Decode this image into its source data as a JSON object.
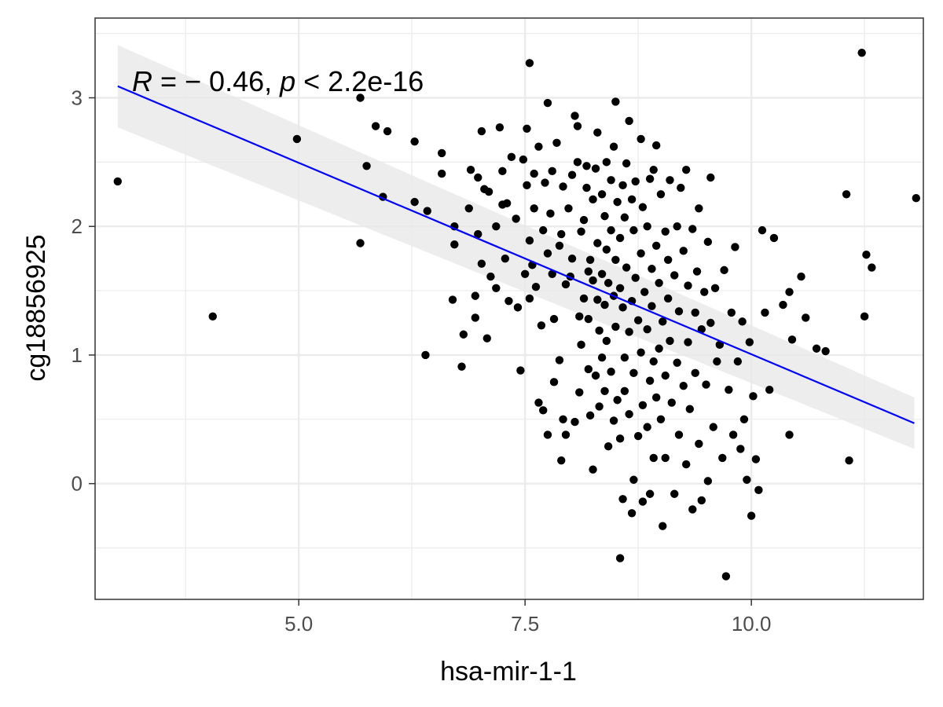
{
  "chart_data": {
    "type": "scatter",
    "xlabel": "hsa-mir-1-1",
    "ylabel": "cg18856925",
    "xlim": [
      2.75,
      11.9
    ],
    "ylim": [
      -0.9,
      3.62
    ],
    "x_ticks": [
      5.0,
      7.5,
      10.0
    ],
    "x_tick_labels": [
      "5.0",
      "7.5",
      "10.0"
    ],
    "y_ticks": [
      0,
      1,
      2,
      3
    ],
    "y_tick_labels": [
      "0",
      "1",
      "2",
      "3"
    ],
    "grid": true,
    "theme": "bw",
    "annotation": {
      "R_prefix": "R",
      "R_value": " = − 0.46,",
      "p_prefix": "p",
      "p_value": " < 2.2e-16"
    },
    "colors": {
      "points": "#000000",
      "fit_line": "#0000ff",
      "confidence_band": "#e8e8e8",
      "grid": "#ebebeb",
      "panel_border": "#333333"
    },
    "fit": {
      "method": "lm",
      "x": [
        3.0,
        11.8
      ],
      "y": [
        3.09,
        0.47
      ],
      "se_lower": [
        2.77,
        0.27
      ],
      "se_upper": [
        3.41,
        0.67
      ]
    },
    "points": [
      [
        3.0,
        2.35
      ],
      [
        4.05,
        1.3
      ],
      [
        4.98,
        2.68
      ],
      [
        5.68,
        3.0
      ],
      [
        5.68,
        1.87
      ],
      [
        5.75,
        2.47
      ],
      [
        5.85,
        2.78
      ],
      [
        5.93,
        2.23
      ],
      [
        5.98,
        2.74
      ],
      [
        6.28,
        2.66
      ],
      [
        6.28,
        2.19
      ],
      [
        6.42,
        2.12
      ],
      [
        6.4,
        1.0
      ],
      [
        6.58,
        2.57
      ],
      [
        6.58,
        2.41
      ],
      [
        6.7,
        1.43
      ],
      [
        6.72,
        1.86
      ],
      [
        6.72,
        2.0
      ],
      [
        6.8,
        0.91
      ],
      [
        6.82,
        1.16
      ],
      [
        6.88,
        2.14
      ],
      [
        6.9,
        2.44
      ],
      [
        6.95,
        1.46
      ],
      [
        6.95,
        1.29
      ],
      [
        6.98,
        1.94
      ],
      [
        6.98,
        2.38
      ],
      [
        7.02,
        2.74
      ],
      [
        7.02,
        1.71
      ],
      [
        7.05,
        2.29
      ],
      [
        7.08,
        1.13
      ],
      [
        7.1,
        2.27
      ],
      [
        7.12,
        1.61
      ],
      [
        7.18,
        2.0
      ],
      [
        7.18,
        1.52
      ],
      [
        7.22,
        2.77
      ],
      [
        7.25,
        2.43
      ],
      [
        7.25,
        2.17
      ],
      [
        7.28,
        1.75
      ],
      [
        7.3,
        2.18
      ],
      [
        7.32,
        1.42
      ],
      [
        7.35,
        2.54
      ],
      [
        7.4,
        2.06
      ],
      [
        7.42,
        1.37
      ],
      [
        7.45,
        0.88
      ],
      [
        7.48,
        2.52
      ],
      [
        7.5,
        1.63
      ],
      [
        7.52,
        2.32
      ],
      [
        7.52,
        2.76
      ],
      [
        7.55,
        3.27
      ],
      [
        7.55,
        1.44
      ],
      [
        7.55,
        1.89
      ],
      [
        7.58,
        1.7
      ],
      [
        7.6,
        2.41
      ],
      [
        7.6,
        2.14
      ],
      [
        7.62,
        1.53
      ],
      [
        7.65,
        2.62
      ],
      [
        7.65,
        0.63
      ],
      [
        7.68,
        1.23
      ],
      [
        7.7,
        1.97
      ],
      [
        7.7,
        0.57
      ],
      [
        7.72,
        2.34
      ],
      [
        7.75,
        2.96
      ],
      [
        7.75,
        1.79
      ],
      [
        7.75,
        0.38
      ],
      [
        7.78,
        2.1
      ],
      [
        7.8,
        2.43
      ],
      [
        7.8,
        1.63
      ],
      [
        7.82,
        0.79
      ],
      [
        7.82,
        1.28
      ],
      [
        7.85,
        2.65
      ],
      [
        7.88,
        1.85
      ],
      [
        7.88,
        0.96
      ],
      [
        7.9,
        0.18
      ],
      [
        7.9,
        1.94
      ],
      [
        7.92,
        0.5
      ],
      [
        7.92,
        2.31
      ],
      [
        7.95,
        1.55
      ],
      [
        7.95,
        0.38
      ],
      [
        7.98,
        2.14
      ],
      [
        8.0,
        1.61
      ],
      [
        8.02,
        2.4
      ],
      [
        8.02,
        1.75
      ],
      [
        8.05,
        2.86
      ],
      [
        8.05,
        0.48
      ],
      [
        8.08,
        2.78
      ],
      [
        8.08,
        2.5
      ],
      [
        8.1,
        0.71
      ],
      [
        8.1,
        1.3
      ],
      [
        8.12,
        1.96
      ],
      [
        8.12,
        1.08
      ],
      [
        8.15,
        2.05
      ],
      [
        8.15,
        1.44
      ],
      [
        8.18,
        2.47
      ],
      [
        8.18,
        2.3
      ],
      [
        8.2,
        1.65
      ],
      [
        8.2,
        1.28
      ],
      [
        8.2,
        0.89
      ],
      [
        8.22,
        0.53
      ],
      [
        8.22,
        1.74
      ],
      [
        8.25,
        2.21
      ],
      [
        8.25,
        0.11
      ],
      [
        8.25,
        1.58
      ],
      [
        8.28,
        2.45
      ],
      [
        8.28,
        0.84
      ],
      [
        8.3,
        2.73
      ],
      [
        8.3,
        1.87
      ],
      [
        8.3,
        1.43
      ],
      [
        8.32,
        1.19
      ],
      [
        8.32,
        0.6
      ],
      [
        8.35,
        2.25
      ],
      [
        8.35,
        1.63
      ],
      [
        8.35,
        0.98
      ],
      [
        8.38,
        2.08
      ],
      [
        8.38,
        1.39
      ],
      [
        8.38,
        0.72
      ],
      [
        8.4,
        2.5
      ],
      [
        8.4,
        1.82
      ],
      [
        8.4,
        1.11
      ],
      [
        8.42,
        0.29
      ],
      [
        8.42,
        1.56
      ],
      [
        8.45,
        2.36
      ],
      [
        8.45,
        1.97
      ],
      [
        8.45,
        0.87
      ],
      [
        8.48,
        2.62
      ],
      [
        8.48,
        1.46
      ],
      [
        8.48,
        0.49
      ],
      [
        8.5,
        2.97
      ],
      [
        8.5,
        1.74
      ],
      [
        8.5,
        1.22
      ],
      [
        8.52,
        2.19
      ],
      [
        8.52,
        0.65
      ],
      [
        8.55,
        -0.58
      ],
      [
        8.55,
        1.91
      ],
      [
        8.55,
        1.52
      ],
      [
        8.55,
        0.35
      ],
      [
        8.58,
        2.32
      ],
      [
        8.58,
        1.37
      ],
      [
        8.58,
        -0.12
      ],
      [
        8.6,
        2.07
      ],
      [
        8.6,
        0.98
      ],
      [
        8.6,
        0.72
      ],
      [
        8.62,
        2.49
      ],
      [
        8.62,
        1.68
      ],
      [
        8.65,
        2.82
      ],
      [
        8.65,
        1.18
      ],
      [
        8.65,
        0.54
      ],
      [
        8.68,
        2.21
      ],
      [
        8.68,
        1.42
      ],
      [
        8.68,
        -0.23
      ],
      [
        8.7,
        1.97
      ],
      [
        8.7,
        0.86
      ],
      [
        8.7,
        0.03
      ],
      [
        8.72,
        2.35
      ],
      [
        8.72,
        1.6
      ],
      [
        8.75,
        1.27
      ],
      [
        8.75,
        0.37
      ],
      [
        8.78,
        2.68
      ],
      [
        8.78,
        1.79
      ],
      [
        8.78,
        1.02
      ],
      [
        8.8,
        2.15
      ],
      [
        8.8,
        0.61
      ],
      [
        8.8,
        -0.14
      ],
      [
        8.82,
        1.49
      ],
      [
        8.85,
        2.0
      ],
      [
        8.85,
        1.2
      ],
      [
        8.85,
        0.44
      ],
      [
        8.88,
        2.37
      ],
      [
        8.88,
        0.8
      ],
      [
        8.88,
        -0.08
      ],
      [
        8.9,
        1.67
      ],
      [
        8.9,
        1.38
      ],
      [
        8.92,
        2.44
      ],
      [
        8.92,
        0.95
      ],
      [
        8.92,
        0.2
      ],
      [
        8.95,
        2.63
      ],
      [
        8.95,
        1.85
      ],
      [
        8.95,
        0.67
      ],
      [
        8.98,
        1.56
      ],
      [
        8.98,
        1.05
      ],
      [
        9.0,
        2.25
      ],
      [
        9.0,
        0.5
      ],
      [
        9.02,
        -0.33
      ],
      [
        9.02,
        1.26
      ],
      [
        9.05,
        1.96
      ],
      [
        9.05,
        0.84
      ],
      [
        9.05,
        0.2
      ],
      [
        9.08,
        1.74
      ],
      [
        9.08,
        1.44
      ],
      [
        9.1,
        2.36
      ],
      [
        9.1,
        1.11
      ],
      [
        9.12,
        0.63
      ],
      [
        9.15,
        1.62
      ],
      [
        9.15,
        -0.08
      ],
      [
        9.18,
        2.0
      ],
      [
        9.18,
        0.94
      ],
      [
        9.2,
        1.34
      ],
      [
        9.2,
        0.38
      ],
      [
        9.22,
        2.3
      ],
      [
        9.25,
        1.81
      ],
      [
        9.25,
        0.76
      ],
      [
        9.28,
        2.44
      ],
      [
        9.28,
        0.15
      ],
      [
        9.3,
        1.54
      ],
      [
        9.3,
        1.1
      ],
      [
        9.32,
        0.58
      ],
      [
        9.35,
        1.98
      ],
      [
        9.35,
        -0.2
      ],
      [
        9.38,
        1.33
      ],
      [
        9.38,
        0.86
      ],
      [
        9.4,
        1.65
      ],
      [
        9.42,
        2.14
      ],
      [
        9.42,
        0.31
      ],
      [
        9.45,
        1.2
      ],
      [
        9.45,
        -0.13
      ],
      [
        9.48,
        1.49
      ],
      [
        9.5,
        0.77
      ],
      [
        9.52,
        1.88
      ],
      [
        9.52,
        0.02
      ],
      [
        9.55,
        1.25
      ],
      [
        9.55,
        2.38
      ],
      [
        9.58,
        0.44
      ],
      [
        9.6,
        1.52
      ],
      [
        9.62,
        0.95
      ],
      [
        9.65,
        1.08
      ],
      [
        9.68,
        0.2
      ],
      [
        9.7,
        1.66
      ],
      [
        9.72,
        -0.72
      ],
      [
        9.75,
        0.73
      ],
      [
        9.78,
        1.33
      ],
      [
        9.8,
        0.38
      ],
      [
        9.82,
        1.84
      ],
      [
        9.85,
        0.95
      ],
      [
        9.88,
        0.27
      ],
      [
        9.9,
        1.26
      ],
      [
        9.92,
        0.5
      ],
      [
        9.95,
        0.03
      ],
      [
        9.98,
        1.1
      ],
      [
        10.0,
        -0.25
      ],
      [
        10.02,
        0.68
      ],
      [
        10.05,
        0.19
      ],
      [
        10.08,
        -0.05
      ],
      [
        10.12,
        1.97
      ],
      [
        10.15,
        1.33
      ],
      [
        10.2,
        0.73
      ],
      [
        10.25,
        1.91
      ],
      [
        10.35,
        1.39
      ],
      [
        10.42,
        0.38
      ],
      [
        10.42,
        1.49
      ],
      [
        10.45,
        1.12
      ],
      [
        10.55,
        1.61
      ],
      [
        10.6,
        1.29
      ],
      [
        10.72,
        1.05
      ],
      [
        10.82,
        1.03
      ],
      [
        11.05,
        2.25
      ],
      [
        11.08,
        0.18
      ],
      [
        11.22,
        3.35
      ],
      [
        11.25,
        1.3
      ],
      [
        11.27,
        1.78
      ],
      [
        11.33,
        1.68
      ],
      [
        11.82,
        2.22
      ]
    ]
  }
}
